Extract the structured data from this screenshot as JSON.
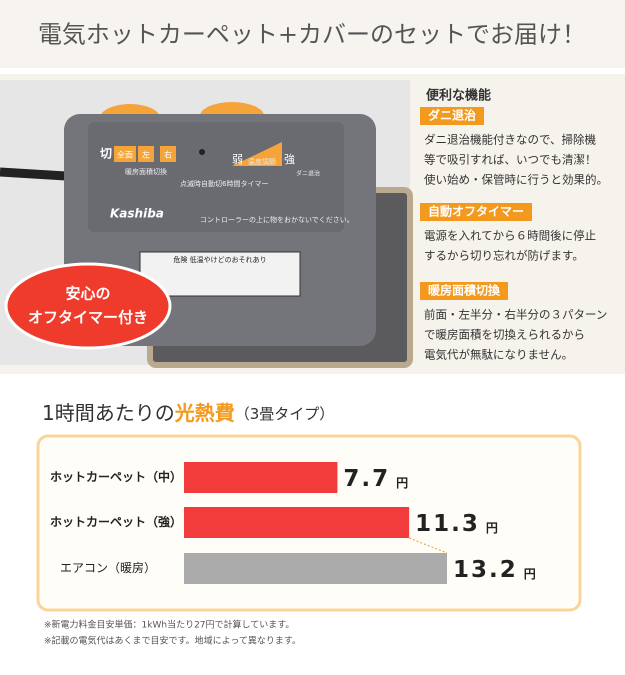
{
  "header": {
    "title": "電気ホットカーペット+カバーのセットでお届け！"
  },
  "photo": {
    "badge": [
      "安心の",
      "オフタイマー付き"
    ],
    "controller": {
      "brand": "Kashiba",
      "off": "切",
      "zones": [
        "全面",
        "左",
        "右"
      ],
      "zone_caption": "暖房面積切換",
      "low": "弱",
      "temp": "温度調節",
      "high": "強",
      "mite": "ダニ退治",
      "timer": "点滅時自動切6時間タイマー",
      "notice": "コントローラーの上に物をおかないでください。",
      "warning": "危険 低温やけどのおそれあり"
    }
  },
  "features": {
    "heading": "便利な機能",
    "items": [
      {
        "label": "ダニ退治",
        "lines": [
          "ダニ退治機能付きなので、掃除機",
          "等で吸引すれば、いつでも清潔！",
          "使い始め・保管時に行うと効果的。"
        ]
      },
      {
        "label": "自動オフタイマー",
        "lines": [
          "電源を入れてから６時間後に停止",
          "するから切り忘れが防げます。"
        ]
      },
      {
        "label": "暖房面積切換",
        "lines": [
          "前面・左半分・右半分の３パターン",
          "で暖房面積を切換えられるから",
          "電気代が無駄になりません。"
        ]
      }
    ]
  },
  "chart_data": {
    "type": "bar",
    "orientation": "horizontal",
    "title_parts": [
      "1時間あたりの",
      "光熱費",
      "（3畳タイプ）"
    ],
    "categories": [
      "ホットカーペット（中）",
      "ホットカーペット（強）",
      "エアコン（暖房）"
    ],
    "values": [
      7.7,
      11.3,
      13.2
    ],
    "colors": [
      "#f23b3b",
      "#f23b3b",
      "#ababab"
    ],
    "unit": "円"
  },
  "footnotes": [
    "※新電力料金目安単価：1kWh当たり27円で計算しています。",
    "※記載の電気代はあくまで目安です。地域によって異なります。"
  ]
}
